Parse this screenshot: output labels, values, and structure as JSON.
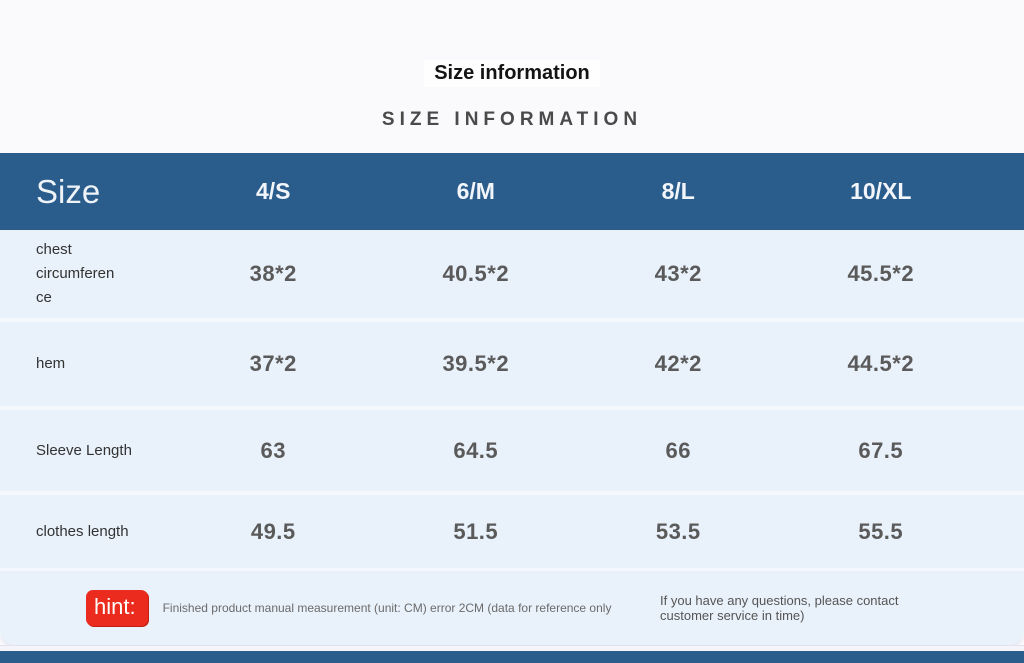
{
  "page": {
    "title": "Size information",
    "subtitle": "SIZE INFORMATION"
  },
  "table": {
    "size_label": "Size",
    "columns": [
      "4/S",
      "6/M",
      "8/L",
      "10/XL"
    ],
    "rows": [
      {
        "label": "chest circumference",
        "values": [
          "38*2",
          "40.5*2",
          "43*2",
          "45.5*2"
        ]
      },
      {
        "label": "hem",
        "values": [
          "37*2",
          "39.5*2",
          "42*2",
          "44.5*2"
        ]
      },
      {
        "label": "Sleeve Length",
        "values": [
          "63",
          "64.5",
          "66",
          "67.5"
        ]
      },
      {
        "label": "clothes length",
        "values": [
          "49.5",
          "51.5",
          "53.5",
          "55.5"
        ]
      }
    ]
  },
  "hint": {
    "badge": "hint:",
    "text": "Finished product manual measurement (unit: CM) error 2CM (data for reference only",
    "right_text": "If you have any questions, please contact customer service in time)"
  },
  "colors": {
    "header_bg": "#2a5c8c",
    "row_bg": "#e9f1fa",
    "badge_bg": "#ea2b1e",
    "footer_bar": "#2a5c8c",
    "value_text": "#5a5a5a"
  }
}
